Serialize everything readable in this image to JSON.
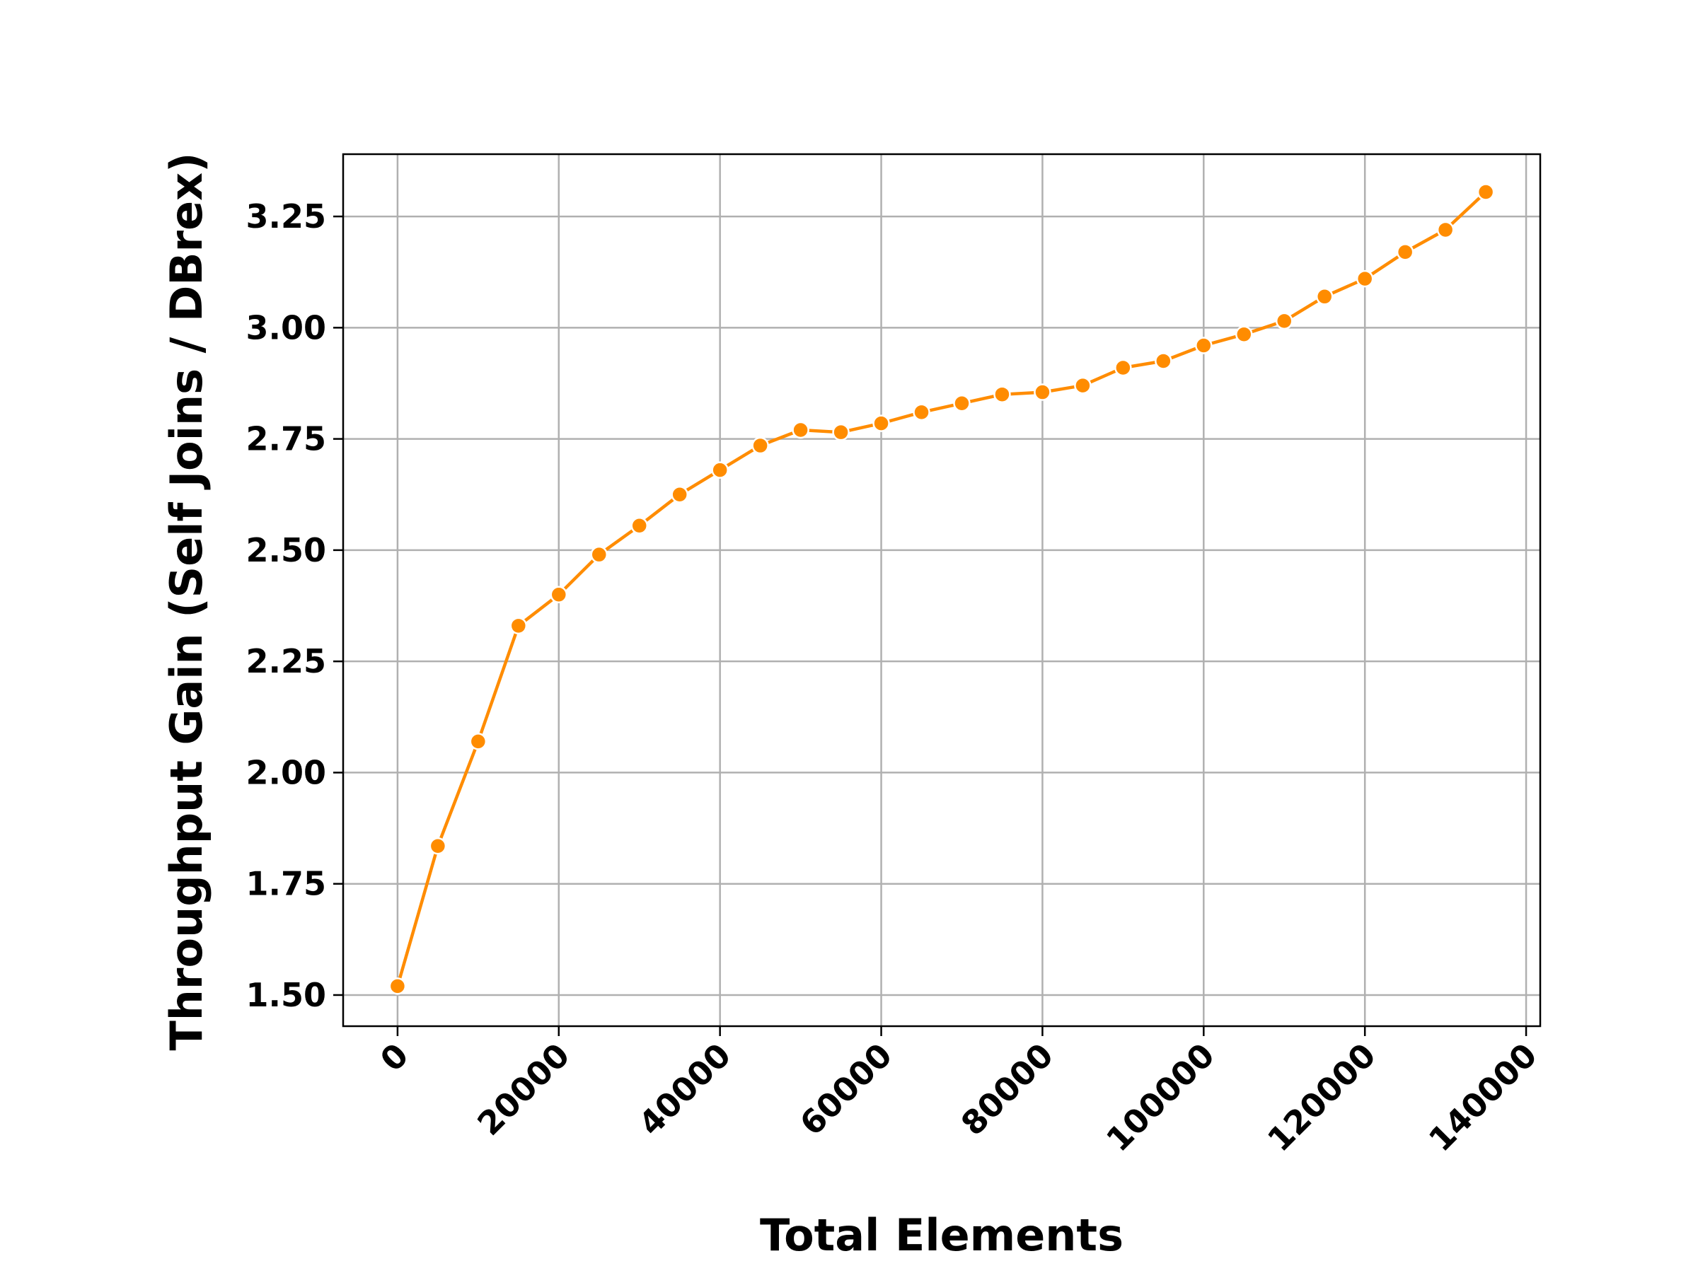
{
  "chart_data": {
    "type": "line",
    "title": "",
    "xlabel": "Total Elements",
    "ylabel": "Throughput Gain (Self Joins / DBrex)",
    "xlim": [
      -6750,
      141750
    ],
    "ylim": [
      1.43,
      3.39
    ],
    "x_ticks": [
      0,
      20000,
      40000,
      60000,
      80000,
      100000,
      120000,
      140000
    ],
    "y_ticks": [
      1.5,
      1.75,
      2.0,
      2.25,
      2.5,
      2.75,
      3.0,
      3.25
    ],
    "x_tick_labels": [
      "0",
      "20000",
      "40000",
      "60000",
      "80000",
      "100000",
      "120000",
      "140000"
    ],
    "y_tick_labels": [
      "1.50",
      "1.75",
      "2.00",
      "2.25",
      "2.50",
      "2.75",
      "3.00",
      "3.25"
    ],
    "grid": true,
    "legend": "none",
    "series": [
      {
        "color": "#ff8c00",
        "marker": "circle",
        "x": [
          0,
          5000,
          10000,
          15000,
          20000,
          25000,
          30000,
          35000,
          40000,
          45000,
          50000,
          55000,
          60000,
          65000,
          70000,
          75000,
          80000,
          85000,
          90000,
          95000,
          100000,
          105000,
          110000,
          115000,
          120000,
          125000,
          130000,
          135000
        ],
        "y": [
          1.52,
          1.835,
          2.07,
          2.33,
          2.4,
          2.49,
          2.555,
          2.625,
          2.68,
          2.735,
          2.77,
          2.765,
          2.785,
          2.81,
          2.83,
          2.85,
          2.855,
          2.87,
          2.91,
          2.925,
          2.96,
          2.985,
          3.015,
          3.07,
          3.11,
          3.17,
          3.22,
          3.305
        ]
      }
    ]
  }
}
